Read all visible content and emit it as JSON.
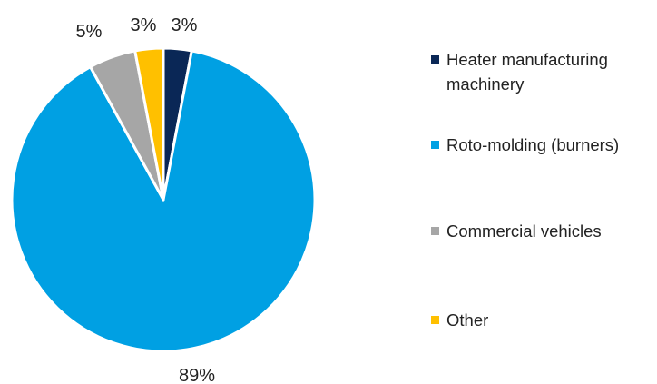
{
  "chart_data": {
    "type": "pie",
    "title": "",
    "slices": [
      {
        "name": "Heater manufacturing machinery",
        "value": 3,
        "label": "3%",
        "color": "#0a2756"
      },
      {
        "name": "Roto-molding (burners)",
        "value": 89,
        "label": "89%",
        "color": "#00a0e3"
      },
      {
        "name": "Commercial vehicles",
        "value": 5,
        "label": "5%",
        "color": "#a6a6a6"
      },
      {
        "name": "Other",
        "value": 3,
        "label": "3%",
        "color": "#ffc000"
      }
    ],
    "legend_placement": "right"
  }
}
